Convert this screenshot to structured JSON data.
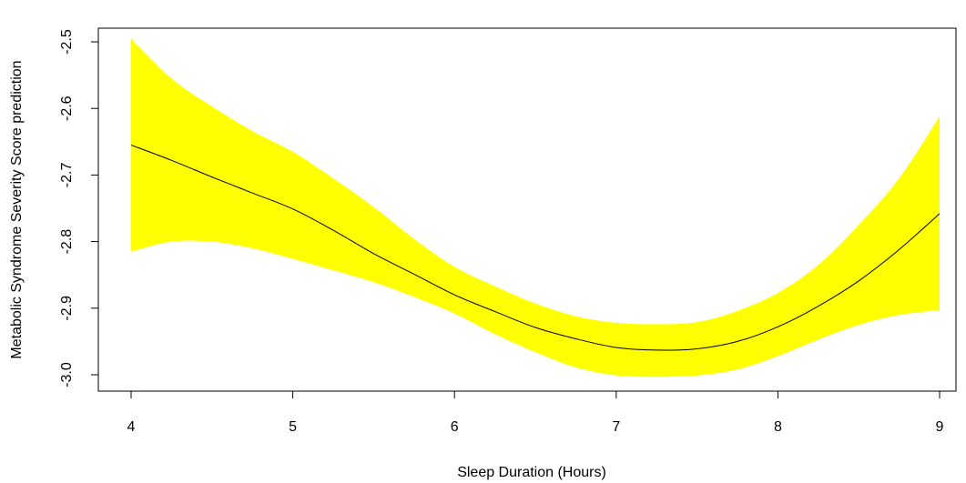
{
  "chart_data": {
    "type": "line",
    "title": "",
    "xlabel": "Sleep Duration (Hours)",
    "ylabel": "Metabolic Syndrome Severity Score prediction",
    "xlim": [
      4,
      9
    ],
    "ylim": [
      -3.0,
      -2.5
    ],
    "x_ticks": [
      4,
      5,
      6,
      7,
      8,
      9
    ],
    "x_tick_labels": [
      "4",
      "5",
      "6",
      "7",
      "8",
      "9"
    ],
    "y_ticks": [
      -3.0,
      -2.9,
      -2.8,
      -2.7,
      -2.6,
      -2.5
    ],
    "y_tick_labels": [
      "-3.0",
      "-2.9",
      "-2.8",
      "-2.7",
      "-2.6",
      "-2.5"
    ],
    "grid": false,
    "colors": {
      "line": "#000000",
      "band": "#ffff00"
    },
    "series": [
      {
        "kind": "fit",
        "x": [
          4.0,
          4.25,
          4.5,
          4.75,
          5.0,
          5.25,
          5.5,
          5.75,
          6.0,
          6.25,
          6.5,
          6.75,
          7.0,
          7.25,
          7.5,
          7.75,
          8.0,
          8.25,
          8.5,
          8.75,
          9.0
        ],
        "y": [
          -2.655,
          -2.678,
          -2.703,
          -2.727,
          -2.751,
          -2.783,
          -2.818,
          -2.849,
          -2.88,
          -2.905,
          -2.929,
          -2.946,
          -2.959,
          -2.963,
          -2.961,
          -2.95,
          -2.928,
          -2.897,
          -2.859,
          -2.812,
          -2.758
        ]
      },
      {
        "kind": "ci-upper",
        "x": [
          4.0,
          4.25,
          4.5,
          4.75,
          5.0,
          5.25,
          5.5,
          5.75,
          6.0,
          6.25,
          6.5,
          6.75,
          7.0,
          7.25,
          7.5,
          7.75,
          8.0,
          8.25,
          8.5,
          8.75,
          9.0
        ],
        "y": [
          -2.495,
          -2.555,
          -2.597,
          -2.634,
          -2.665,
          -2.705,
          -2.748,
          -2.796,
          -2.838,
          -2.867,
          -2.893,
          -2.912,
          -2.922,
          -2.924,
          -2.921,
          -2.904,
          -2.877,
          -2.835,
          -2.775,
          -2.705,
          -2.612
        ]
      },
      {
        "kind": "ci-lower",
        "x": [
          4.0,
          4.25,
          4.5,
          4.75,
          5.0,
          5.25,
          5.5,
          5.75,
          6.0,
          6.25,
          6.5,
          6.75,
          7.0,
          7.25,
          7.5,
          7.75,
          8.0,
          8.25,
          8.5,
          8.75,
          9.0
        ],
        "y": [
          -2.815,
          -2.8,
          -2.8,
          -2.81,
          -2.826,
          -2.843,
          -2.861,
          -2.883,
          -2.908,
          -2.939,
          -2.966,
          -2.989,
          -3.001,
          -3.003,
          -3.001,
          -2.992,
          -2.972,
          -2.947,
          -2.925,
          -2.91,
          -2.903
        ]
      }
    ]
  }
}
